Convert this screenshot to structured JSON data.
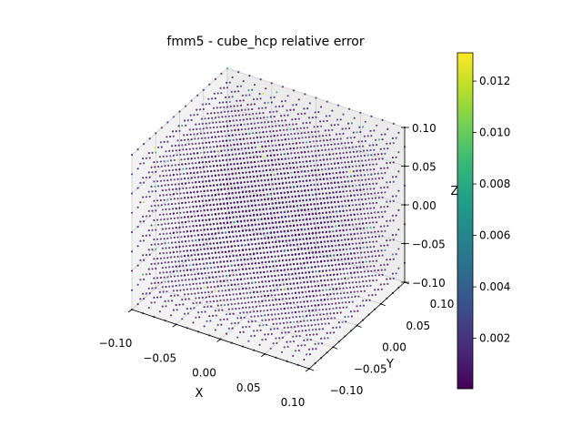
{
  "chart_data": {
    "type": "scatter",
    "projection": "3d",
    "title": "fmm5 - cube_hcp relative error",
    "xlabel": "X",
    "ylabel": "Y",
    "zlabel": "Z",
    "xlim": [
      -0.1,
      0.1
    ],
    "ylim": [
      -0.1,
      0.1
    ],
    "zlim": [
      -0.1,
      0.1
    ],
    "xticks": [
      "−0.10",
      "−0.05",
      "0.00",
      "0.05",
      "0.10"
    ],
    "yticks": [
      "−0.10",
      "−0.05",
      "0.00",
      "0.05",
      "0.10"
    ],
    "zticks": [
      "−0.10",
      "−0.05",
      "0.00",
      "0.05",
      "0.10"
    ],
    "xtick_values": [
      -0.1,
      -0.05,
      0,
      0.05,
      0.1
    ],
    "colormap": "viridis",
    "colorbar": {
      "range": [
        4e-05,
        0.0131
      ],
      "tick_values": [
        0.002,
        0.004,
        0.006,
        0.008,
        0.01,
        0.012
      ],
      "tick_labels": [
        "0.002",
        "0.004",
        "0.006",
        "0.008",
        "0.010",
        "0.012"
      ]
    },
    "grid": true,
    "colors": [
      "#440154",
      "#482878",
      "#3e4a89",
      "#31688e",
      "#26828e",
      "#1f9e89",
      "#35b779",
      "#6ece58",
      "#b5de2b",
      "#fde725"
    ]
  }
}
